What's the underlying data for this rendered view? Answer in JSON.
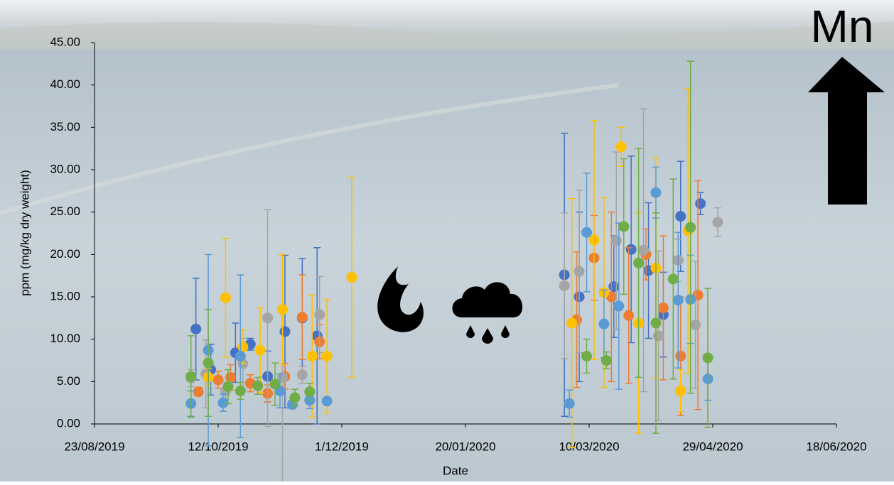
{
  "chart_data": {
    "type": "scatter",
    "title": "Mn",
    "x_label": "Date",
    "y_label": "ppm (mg/kg dry weight)",
    "xlim": [
      "23/08/2019",
      "18/06/2020"
    ],
    "xticks": [
      "23/08/2019",
      "12/10/2019",
      "1/12/2019",
      "20/01/2020",
      "10/03/2020",
      "29/04/2020",
      "18/06/2020"
    ],
    "ylim": [
      0,
      45
    ],
    "yticks": [
      {
        "value": 0,
        "label": "0.00"
      },
      {
        "value": 5,
        "label": "5.00"
      },
      {
        "value": 10,
        "label": "10.00"
      },
      {
        "value": 15,
        "label": "15.00"
      },
      {
        "value": 20,
        "label": "20.00"
      },
      {
        "value": 25,
        "label": "25.00"
      },
      {
        "value": 30,
        "label": "30.00"
      },
      {
        "value": 35,
        "label": "35.00"
      },
      {
        "value": 40,
        "label": "40.00"
      },
      {
        "value": 45,
        "label": "45.00"
      }
    ],
    "series": [
      {
        "color": "#4472c4",
        "x": [
          "3/10/2019",
          "9/10/2019",
          "19/10/2019",
          "25/10/2019",
          "1/11/2019",
          "8/11/2019",
          "15/11/2019",
          "21/11/2019",
          "29/02/2020",
          "6/03/2020",
          "20/03/2020",
          "27/03/2020",
          "3/04/2020",
          "9/04/2020",
          "16/04/2020",
          "24/04/2020"
        ],
        "values": [
          11.2,
          6.4,
          8.4,
          9.4,
          5.6,
          10.9,
          12.5,
          10.4,
          17.6,
          15.0,
          16.2,
          20.6,
          18.1,
          12.9,
          24.5,
          26.0
        ],
        "errors": [
          6.0,
          3.0,
          3.5,
          0.7,
          3.0,
          9.0,
          7.0,
          10.4,
          16.7,
          10.0,
          6.0,
          11.0,
          8.0,
          5.0,
          6.5,
          1.3
        ]
      },
      {
        "color": "#ed7d31",
        "x": [
          "4/10/2019",
          "12/10/2019",
          "17/10/2019",
          "25/10/2019",
          "1/11/2019",
          "8/11/2019",
          "15/11/2019",
          "22/11/2019",
          "5/03/2020",
          "12/03/2020",
          "19/03/2020",
          "26/03/2020",
          "2/04/2020",
          "9/04/2020",
          "16/04/2020",
          "23/04/2020"
        ],
        "values": [
          3.8,
          5.2,
          5.5,
          4.8,
          3.6,
          5.6,
          12.6,
          9.7,
          12.3,
          19.6,
          15.0,
          12.8,
          20.0,
          13.7,
          8.0,
          15.2
        ],
        "errors": [
          0.5,
          1.0,
          1.5,
          1.0,
          1.0,
          1.5,
          5.0,
          2.0,
          8.0,
          5.0,
          10.0,
          8.0,
          3.0,
          8.5,
          7.0,
          13.5
        ]
      },
      {
        "color": "#a5a5a5",
        "x": [
          "1/10/2019",
          "7/10/2019",
          "15/10/2019",
          "22/10/2019",
          "1/11/2019",
          "7/11/2019",
          "15/11/2019",
          "22/11/2019",
          "29/02/2020",
          "6/03/2020",
          "21/03/2020",
          "1/04/2020",
          "7/04/2020",
          "15/04/2020",
          "22/04/2020",
          "1/05/2020"
        ],
        "values": [
          5.4,
          5.9,
          3.9,
          7.1,
          12.5,
          5.5,
          5.8,
          12.9,
          16.3,
          18.0,
          21.6,
          20.5,
          10.4,
          19.3,
          11.7,
          23.8
        ],
        "errors": [
          1.0,
          4.0,
          1.0,
          3.0,
          12.8,
          14.5,
          1.0,
          4.5,
          8.6,
          9.6,
          10.5,
          16.7,
          10.0,
          2.5,
          7.5,
          1.7
        ]
      },
      {
        "color": "#ffc000",
        "x": [
          "8/10/2019",
          "15/10/2019",
          "22/10/2019",
          "29/10/2019",
          "7/11/2019",
          "19/11/2019",
          "25/11/2019",
          "5/12/2019",
          "3/03/2020",
          "12/03/2020",
          "16/03/2020",
          "23/03/2020",
          "30/03/2020",
          "6/04/2020",
          "16/04/2020",
          "19/04/2020"
        ],
        "values": [
          5.5,
          14.9,
          9.1,
          8.7,
          13.5,
          8.0,
          8.0,
          17.3,
          11.9,
          21.7,
          15.5,
          32.7,
          11.9,
          18.4,
          3.9,
          22.8
        ],
        "errors": [
          1.0,
          7.0,
          2.0,
          5.0,
          6.5,
          7.2,
          6.7,
          11.8,
          14.7,
          14.1,
          11.2,
          2.3,
          13.0,
          13.0,
          2.5,
          16.8
        ]
      },
      {
        "color": "#5b9bd5",
        "x": [
          "1/10/2019",
          "8/10/2019",
          "14/10/2019",
          "21/10/2019",
          "6/11/2019",
          "11/11/2019",
          "18/11/2019",
          "25/11/2019",
          "2/03/2020",
          "9/03/2020",
          "16/03/2020",
          "22/03/2020",
          "6/04/2020",
          "15/04/2020",
          "20/04/2020",
          "27/04/2020"
        ],
        "values": [
          2.4,
          8.7,
          2.5,
          8.0,
          3.9,
          2.3,
          2.8,
          2.7,
          2.4,
          22.6,
          11.8,
          13.9,
          27.3,
          14.6,
          14.7,
          5.3
        ],
        "errors": [
          1.5,
          11.3,
          1.0,
          9.6,
          2.0,
          0.5,
          1.0,
          0.3,
          1.6,
          7.0,
          4.0,
          9.8,
          3.0,
          8.0,
          5.2,
          2.5
        ]
      },
      {
        "color": "#70ad47",
        "x": [
          "1/10/2019",
          "8/10/2019",
          "16/10/2019",
          "21/10/2019",
          "28/10/2019",
          "4/11/2019",
          "12/11/2019",
          "18/11/2019",
          "9/03/2020",
          "17/03/2020",
          "24/03/2020",
          "30/03/2020",
          "6/04/2020",
          "13/04/2020",
          "20/04/2020",
          "27/04/2020"
        ],
        "values": [
          5.6,
          7.2,
          4.4,
          3.9,
          4.5,
          4.7,
          3.1,
          3.8,
          8.0,
          7.5,
          23.3,
          19.0,
          11.9,
          17.1,
          23.2,
          7.8
        ],
        "errors": [
          4.8,
          6.3,
          2.0,
          1.0,
          1.0,
          2.5,
          1.0,
          1.0,
          2.0,
          1.0,
          8.0,
          13.5,
          13.0,
          11.8,
          19.6,
          8.2
        ]
      }
    ]
  }
}
